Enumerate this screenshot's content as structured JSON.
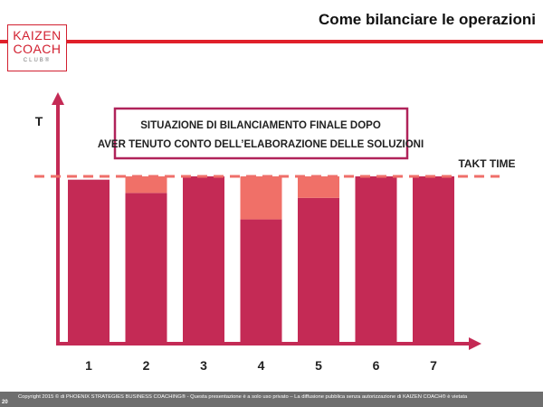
{
  "header": {
    "title": "Come bilanciare le operazioni"
  },
  "logo": {
    "line1": "KAIZEN",
    "line2": "COACH",
    "line3": "CLUB®"
  },
  "footer": {
    "page_number": "20",
    "copyright": "Copyright 2015 © di PHOENIX STRATEGIES BUSINESS COACHING® - Questa presentazione è a solo uso privato – La diffusione pubblica senza autorizzazione di KAIZEN COACH® è vietata"
  },
  "colors": {
    "bar": "#c42a55",
    "waste": "#f07068",
    "takt": "#ef6f6a",
    "axis": "#c42a55",
    "box_border": "#b0235a",
    "brand_red": "#e0202a"
  },
  "chart_data": {
    "type": "bar",
    "ylabel": "T",
    "annotation_line1": "SITUAZIONE DI BILANCIAMENTO FINALE DOPO",
    "annotation_line2": "AVER TENUTO CONTO DELL’ELABORAZIONE DELLE SOLUZIONI",
    "takt_label": "TAKT TIME",
    "takt_time": 100,
    "ylim": [
      0,
      140
    ],
    "categories": [
      "1",
      "2",
      "3",
      "4",
      "5",
      "6",
      "7"
    ],
    "series": [
      {
        "values": [
          98,
          90,
          100,
          74,
          87,
          100,
          100
        ]
      },
      {
        "values": [
          0,
          10,
          0,
          26,
          13,
          0,
          0
        ]
      }
    ]
  }
}
